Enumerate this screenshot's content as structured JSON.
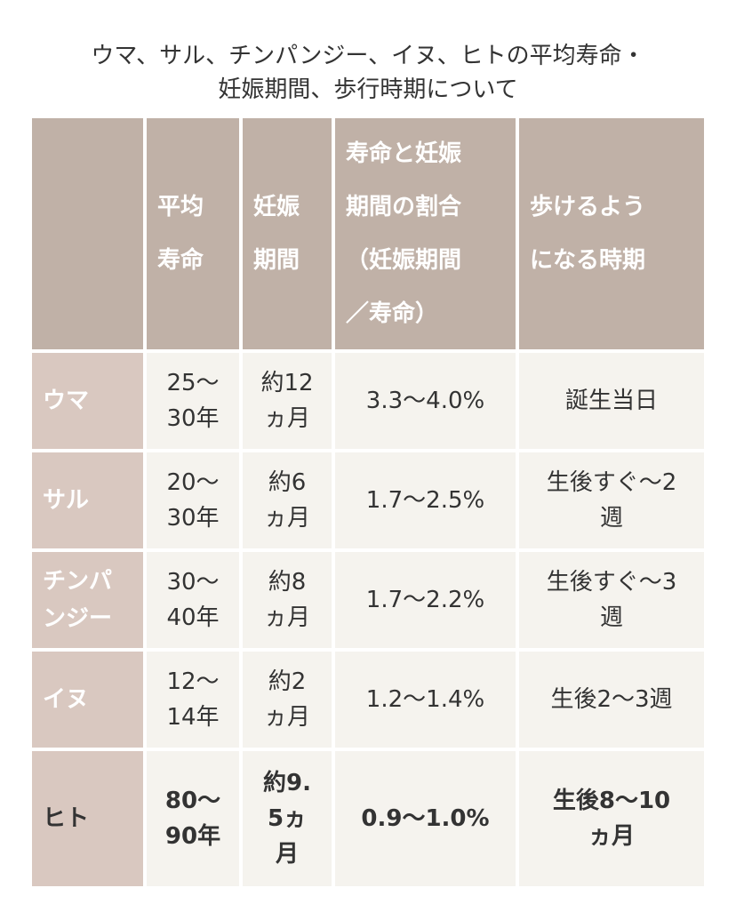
{
  "title": "ウマ、サル、チンパンジー、イヌ、ヒトの平均寿命・\n妊娠期間、歩行時期について",
  "headers": [
    "",
    "平均\n寿命",
    "妊娠\n期間",
    "寿命と妊娠\n期間の割合\n（妊娠期間\n／寿命）",
    "歩けるよう\nになる時期"
  ],
  "rows": [
    {
      "animal": "ウマ",
      "lifespan": "25〜\n30年",
      "gestation": "約12\nヵ月",
      "ratio": "3.3〜4.0%",
      "walking": "誕生当日"
    },
    {
      "animal": "サル",
      "lifespan": "20〜\n30年",
      "gestation": "約6\nヵ月",
      "ratio": "1.7〜2.5%",
      "walking": "生後すぐ〜2\n週"
    },
    {
      "animal": "チンパ\nンジー",
      "lifespan": "30〜\n40年",
      "gestation": "約8\nヵ月",
      "ratio": "1.7〜2.2%",
      "walking": "生後すぐ〜3\n週"
    },
    {
      "animal": "イヌ",
      "lifespan": "12〜\n14年",
      "gestation": "約2\nヵ月",
      "ratio": "1.2〜1.4%",
      "walking": "生後2〜3週"
    },
    {
      "animal": "ヒト",
      "lifespan": "80〜\n90年",
      "gestation": "約9.\n5ヵ\n月",
      "ratio": "0.9〜1.0%",
      "walking": "生後8〜10\nヵ月"
    }
  ],
  "colors": {
    "header": "#c0b1a7",
    "row_header": "#d9c8c0",
    "cell": "#f5f3ee"
  }
}
